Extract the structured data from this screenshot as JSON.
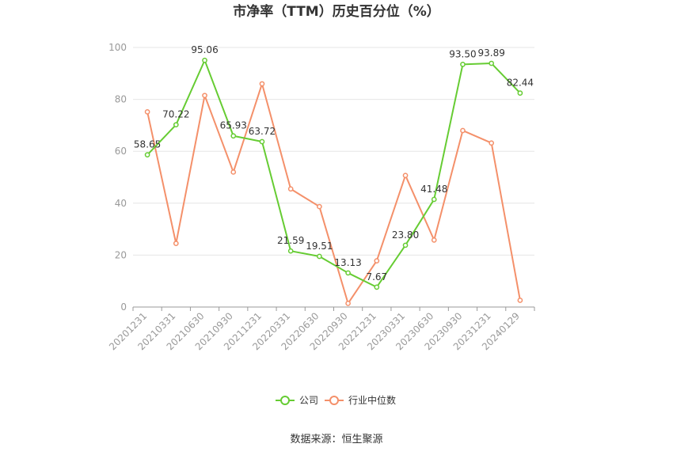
{
  "chart_data": {
    "type": "line",
    "title": "市净率（TTM）历史百分位（%）",
    "categories": [
      "20201231",
      "20210331",
      "20210630",
      "20210930",
      "20211231",
      "20220331",
      "20220630",
      "20220930",
      "20221231",
      "20230331",
      "20230630",
      "20230930",
      "20231231",
      "20240129"
    ],
    "series": [
      {
        "name": "公司",
        "color": "#66cc33",
        "values": [
          58.65,
          70.22,
          95.06,
          65.93,
          63.72,
          21.59,
          19.51,
          13.13,
          7.67,
          23.8,
          41.48,
          93.5,
          93.89,
          82.44
        ],
        "labels": [
          "58.65",
          "70.22",
          "95.06",
          "65.93",
          "63.72",
          "21.59",
          "19.51",
          "13.13",
          "7.67",
          "23.80",
          "41.48",
          "93.50",
          "93.89",
          "82.44"
        ]
      },
      {
        "name": "行业中位数",
        "color": "#f4906a",
        "values": [
          75.2,
          24.5,
          81.5,
          52.0,
          86.0,
          45.5,
          38.7,
          1.4,
          17.8,
          50.7,
          25.8,
          68.0,
          63.2,
          2.6
        ]
      }
    ],
    "yticks": [
      "0",
      "20",
      "40",
      "60",
      "80",
      "100"
    ],
    "ylim": [
      0,
      100
    ],
    "grid": true,
    "legend_position": "bottom"
  },
  "source": "数据来源：恒生聚源"
}
